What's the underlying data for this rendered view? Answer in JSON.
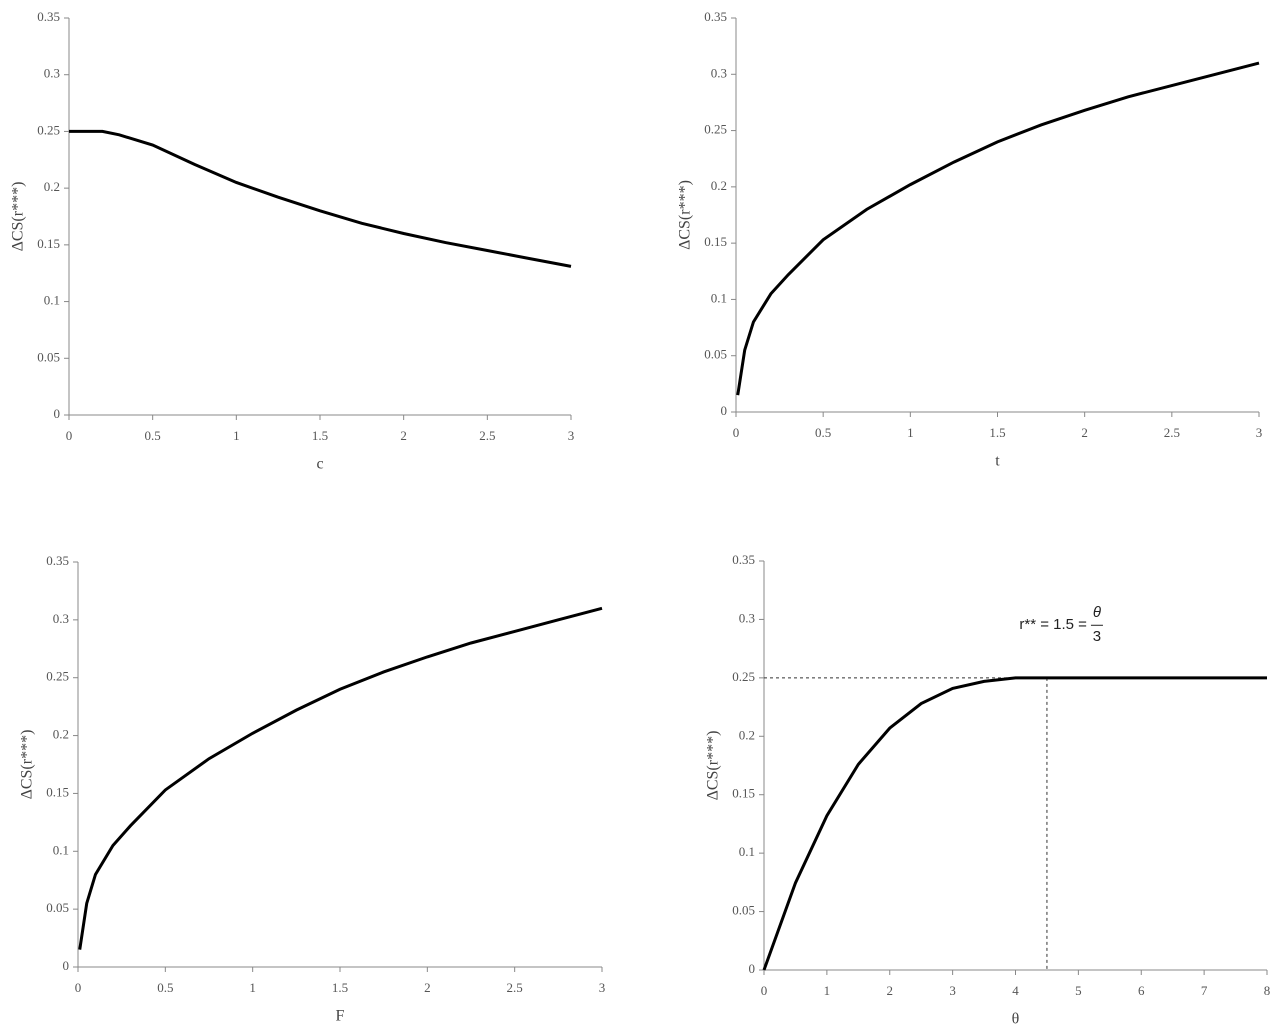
{
  "chart_data": [
    {
      "type": "line",
      "x_label": "c",
      "y_label": "ΔCS(r***)",
      "color": "#000000",
      "x": [
        0,
        0.1,
        0.2,
        0.3,
        0.5,
        0.75,
        1,
        1.25,
        1.5,
        1.75,
        2,
        2.25,
        2.5,
        2.75,
        3
      ],
      "values": [
        0.25,
        0.25,
        0.25,
        0.247,
        0.238,
        0.221,
        0.205,
        0.192,
        0.18,
        0.169,
        0.16,
        0.152,
        0.145,
        0.138,
        0.131
      ],
      "xlim": [
        0,
        3
      ],
      "ylim": [
        0,
        0.35
      ],
      "xticks": [
        0,
        0.5,
        1,
        1.5,
        2,
        2.5,
        3
      ],
      "yticks": [
        0,
        0.05,
        0.1,
        0.15,
        0.2,
        0.25,
        0.3,
        0.35
      ]
    },
    {
      "type": "line",
      "x_label": "t",
      "y_label": "ΔCS(r***)",
      "color": "#000000",
      "x": [
        0.01,
        0.05,
        0.1,
        0.2,
        0.3,
        0.5,
        0.75,
        1,
        1.25,
        1.5,
        1.75,
        2,
        2.25,
        2.5,
        2.75,
        3
      ],
      "values": [
        0.015,
        0.055,
        0.08,
        0.105,
        0.122,
        0.153,
        0.18,
        0.202,
        0.222,
        0.24,
        0.255,
        0.268,
        0.28,
        0.29,
        0.3,
        0.31
      ],
      "xlim": [
        0,
        3
      ],
      "ylim": [
        0,
        0.35
      ],
      "xticks": [
        0,
        0.5,
        1,
        1.5,
        2,
        2.5,
        3
      ],
      "yticks": [
        0,
        0.05,
        0.1,
        0.15,
        0.2,
        0.25,
        0.3,
        0.35
      ]
    },
    {
      "type": "line",
      "x_label": "F",
      "y_label": "ΔCS(r***)",
      "color": "#000000",
      "x": [
        0.01,
        0.05,
        0.1,
        0.2,
        0.3,
        0.5,
        0.75,
        1,
        1.25,
        1.5,
        1.75,
        2,
        2.25,
        2.5,
        2.75,
        3
      ],
      "values": [
        0.015,
        0.055,
        0.08,
        0.105,
        0.122,
        0.153,
        0.18,
        0.202,
        0.222,
        0.24,
        0.255,
        0.268,
        0.28,
        0.29,
        0.3,
        0.31
      ],
      "xlim": [
        0,
        3
      ],
      "ylim": [
        0,
        0.35
      ],
      "xticks": [
        0,
        0.5,
        1,
        1.5,
        2,
        2.5,
        3
      ],
      "yticks": [
        0,
        0.05,
        0.1,
        0.15,
        0.2,
        0.25,
        0.3,
        0.35
      ]
    },
    {
      "type": "line",
      "x_label": "θ",
      "y_label": "ΔCS(r***)",
      "color": "#000000",
      "x": [
        0,
        0.5,
        1,
        1.5,
        2,
        2.5,
        3,
        3.5,
        4,
        4.5,
        5,
        6,
        7,
        8
      ],
      "values": [
        0,
        0.0745,
        0.132,
        0.176,
        0.207,
        0.228,
        0.241,
        0.247,
        0.25,
        0.25,
        0.25,
        0.25,
        0.25,
        0.25
      ],
      "xlim": [
        0,
        8
      ],
      "ylim": [
        0,
        0.35
      ],
      "xticks": [
        0,
        1,
        2,
        3,
        4,
        5,
        6,
        7,
        8
      ],
      "yticks": [
        0,
        0.05,
        0.1,
        0.15,
        0.2,
        0.25,
        0.3,
        0.35
      ],
      "reference_x": 4.5,
      "reference_y": 0.25,
      "annotation": {
        "text": "r** = 1.5 =",
        "numerator": "θ",
        "denominator": "3"
      }
    }
  ]
}
